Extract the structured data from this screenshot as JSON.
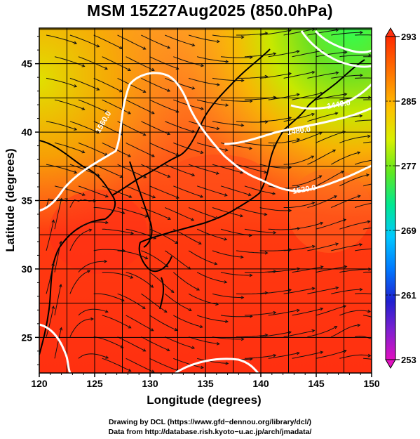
{
  "title": "MSM 15Z27Aug2025 (850.0hPa)",
  "x_axis": {
    "label": "Longitude (degrees)",
    "ticks": [
      "120",
      "125",
      "130",
      "135",
      "140",
      "145",
      "150"
    ],
    "range": [
      120,
      150
    ]
  },
  "y_axis": {
    "label": "Latitude  (degrees)",
    "ticks": [
      "25",
      "30",
      "35",
      "40",
      "45"
    ],
    "range": [
      22.4,
      47.6
    ]
  },
  "colorbar": {
    "ticks": [
      "293",
      "285",
      "277",
      "269",
      "261",
      "253"
    ],
    "range": [
      253,
      293
    ],
    "colors": [
      "#e010c0",
      "#2020ff",
      "#00c8ff",
      "#00e070",
      "#c8f000",
      "#ffb000",
      "#ff3000"
    ]
  },
  "contours": [
    {
      "label": "1440.0"
    },
    {
      "label": "1480.0"
    },
    {
      "label": "1520.0"
    },
    {
      "label": "1560.0"
    }
  ],
  "credits": {
    "line1": "Drawing by DCL (https://www.gfd−dennou.org/library/dcl/)",
    "line2": "Data from http://database.rish.kyoto−u.ac.jp/arch/jmadata/"
  },
  "colors": {
    "warm": "#ff3a10",
    "orange": "#ff8c1a",
    "yellow": "#f0d000",
    "green": "#70e020",
    "contour": "#ffffff",
    "streamline": "#111111"
  }
}
